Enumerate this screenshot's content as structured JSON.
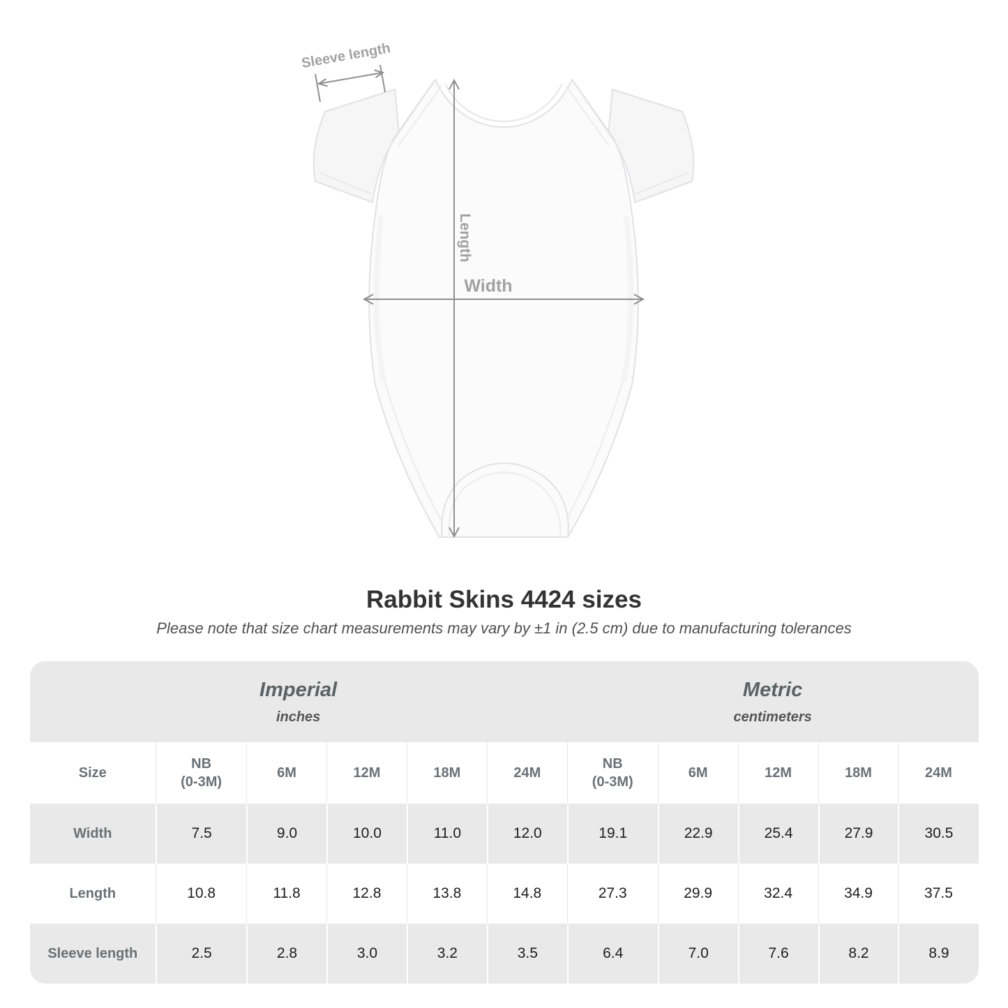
{
  "diagram": {
    "labels": {
      "sleeve_length": "Sleeve length",
      "length": "Length",
      "width": "Width"
    }
  },
  "heading": {
    "title": "Rabbit Skins 4424 sizes",
    "subtitle": "Please note that size chart measurements may vary by ±1 in (2.5 cm) due to manufacturing tolerances"
  },
  "table": {
    "unit_groups": [
      {
        "label": "Imperial",
        "sublabel": "inches"
      },
      {
        "label": "Metric",
        "sublabel": "centimeters"
      }
    ],
    "size_header": "Size",
    "columns": [
      "NB\n(0-3M)",
      "6M",
      "12M",
      "18M",
      "24M",
      "NB\n(0-3M)",
      "6M",
      "12M",
      "18M",
      "24M"
    ],
    "rows": [
      {
        "label": "Width",
        "values": [
          "7.5",
          "9.0",
          "10.0",
          "11.0",
          "12.0",
          "19.1",
          "22.9",
          "25.4",
          "27.9",
          "30.5"
        ]
      },
      {
        "label": "Length",
        "values": [
          "10.8",
          "11.8",
          "12.8",
          "13.8",
          "14.8",
          "27.3",
          "29.9",
          "32.4",
          "34.9",
          "37.5"
        ]
      },
      {
        "label": "Sleeve length",
        "values": [
          "2.5",
          "2.8",
          "3.0",
          "3.2",
          "3.5",
          "6.4",
          "7.0",
          "7.6",
          "8.2",
          "8.9"
        ]
      }
    ]
  },
  "chart_data": {
    "type": "table",
    "title": "Rabbit Skins 4424 sizes",
    "note": "Please note that size chart measurements may vary by ±1 in (2.5 cm) due to manufacturing tolerances",
    "unit_groups": [
      {
        "label": "Imperial",
        "units": "inches",
        "sizes": [
          "NB (0-3M)",
          "6M",
          "12M",
          "18M",
          "24M"
        ]
      },
      {
        "label": "Metric",
        "units": "centimeters",
        "sizes": [
          "NB (0-3M)",
          "6M",
          "12M",
          "18M",
          "24M"
        ]
      }
    ],
    "rows": [
      {
        "measurement": "Width",
        "imperial_in": [
          7.5,
          9.0,
          10.0,
          11.0,
          12.0
        ],
        "metric_cm": [
          19.1,
          22.9,
          25.4,
          27.9,
          30.5
        ]
      },
      {
        "measurement": "Length",
        "imperial_in": [
          10.8,
          11.8,
          12.8,
          13.8,
          14.8
        ],
        "metric_cm": [
          27.3,
          29.9,
          32.4,
          34.9,
          37.5
        ]
      },
      {
        "measurement": "Sleeve length",
        "imperial_in": [
          2.5,
          2.8,
          3.0,
          3.2,
          3.5
        ],
        "metric_cm": [
          6.4,
          7.0,
          7.6,
          8.2,
          8.9
        ]
      }
    ]
  },
  "colors": {
    "band_gray": "#e9e9e9",
    "row_gray": "#e9e9e9",
    "row_white": "#ffffff",
    "header_text": "#6a7176",
    "data_text": "#1d1d1d",
    "title_text": "#333333",
    "subtitle_text": "#4f4f4f",
    "annotation_line": "#8f8f8f",
    "annotation_text": "#a1a1a1",
    "garment_outline": "#e2e2e4"
  }
}
